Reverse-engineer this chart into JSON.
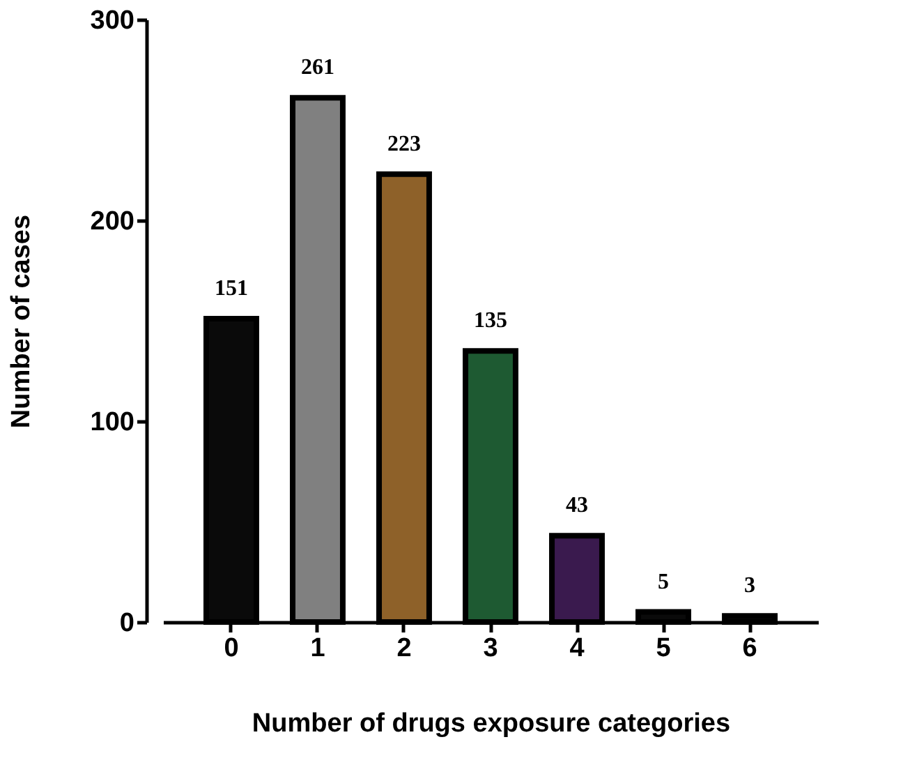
{
  "chart_data": {
    "type": "bar",
    "xlabel": "Number of drugs exposure categories",
    "ylabel": "Number of cases",
    "categories": [
      "0",
      "1",
      "2",
      "3",
      "4",
      "5",
      "6"
    ],
    "values": [
      151,
      261,
      223,
      135,
      43,
      5,
      3
    ],
    "colors": [
      "#0a0a0a",
      "#808080",
      "#8e6129",
      "#1e5a32",
      "#3a1a4e",
      "#0a0a0a",
      "#0a0a0a"
    ],
    "ylim": [
      0,
      300
    ],
    "yticks": [
      0,
      100,
      200,
      300
    ],
    "grid": false,
    "data_labels": true
  }
}
